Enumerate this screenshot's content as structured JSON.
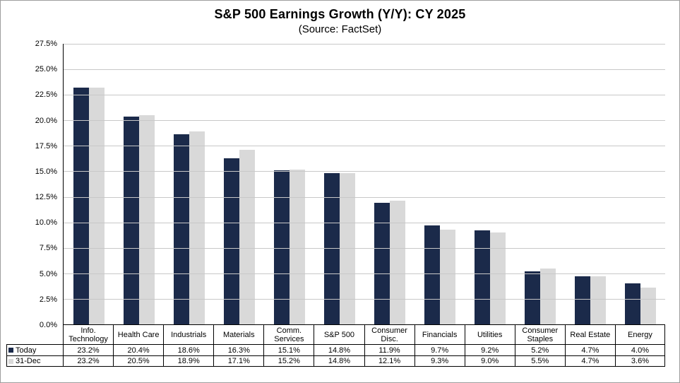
{
  "title": "S&P 500 Earnings Growth (Y/Y): CY 2025",
  "subtitle": "(Source: FactSet)",
  "colors": {
    "today_bar": "#1b2a4a",
    "dec_bar": "#d9d9d9",
    "gridline": "#c8c8c8"
  },
  "chart_data": {
    "type": "bar",
    "title": "S&P 500 Earnings Growth (Y/Y): CY 2025",
    "subtitle": "(Source: FactSet)",
    "categories": [
      "Info. Technology",
      "Health Care",
      "Industrials",
      "Materials",
      "Comm. Services",
      "S&P 500",
      "Consumer Disc.",
      "Financials",
      "Utilities",
      "Consumer Staples",
      "Real Estate",
      "Energy"
    ],
    "series": [
      {
        "name": "Today",
        "color": "#1b2a4a",
        "values": [
          23.2,
          20.4,
          18.6,
          16.3,
          15.1,
          14.8,
          11.9,
          9.7,
          9.2,
          5.2,
          4.7,
          4.0
        ]
      },
      {
        "name": "31-Dec",
        "color": "#d9d9d9",
        "values": [
          23.2,
          20.5,
          18.9,
          17.1,
          15.2,
          14.8,
          12.1,
          9.3,
          9.0,
          5.5,
          4.7,
          3.6
        ]
      }
    ],
    "xlabel": "",
    "ylabel": "",
    "ylim": [
      0,
      27.5
    ],
    "ytick_step": 2.5,
    "ytick_labels": [
      "27.5%",
      "25.0%",
      "22.5%",
      "20.0%",
      "17.5%",
      "15.0%",
      "12.5%",
      "10.0%",
      "7.5%",
      "5.0%",
      "2.5%",
      "0.0%"
    ],
    "grid": true,
    "legend_position": "table-left"
  },
  "table": {
    "rows": [
      {
        "label": "Today",
        "values": [
          "23.2%",
          "20.4%",
          "18.6%",
          "16.3%",
          "15.1%",
          "14.8%",
          "11.9%",
          "9.7%",
          "9.2%",
          "5.2%",
          "4.7%",
          "4.0%"
        ]
      },
      {
        "label": "31-Dec",
        "values": [
          "23.2%",
          "20.5%",
          "18.9%",
          "17.1%",
          "15.2%",
          "14.8%",
          "12.1%",
          "9.3%",
          "9.0%",
          "5.5%",
          "4.7%",
          "3.6%"
        ]
      }
    ]
  }
}
